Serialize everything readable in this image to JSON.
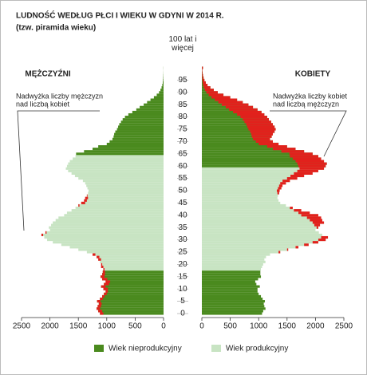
{
  "chart_data": {
    "type": "pyramid",
    "title": "LUDNOŚĆ WEDŁUG PŁCI I WIEKU W GDYNI W 2014 R.",
    "subtitle": "(tzw. piramida wieku)",
    "categories": [
      "0",
      null,
      null,
      null,
      null,
      "5",
      null,
      null,
      null,
      null,
      "10",
      null,
      null,
      null,
      null,
      "15",
      null,
      null,
      null,
      null,
      "20",
      null,
      null,
      null,
      null,
      "25",
      null,
      null,
      null,
      null,
      "30",
      null,
      null,
      null,
      null,
      "35",
      null,
      null,
      null,
      null,
      "40",
      null,
      null,
      null,
      null,
      "45",
      null,
      null,
      null,
      null,
      "50",
      null,
      null,
      null,
      null,
      "55",
      null,
      null,
      null,
      null,
      "60",
      null,
      null,
      null,
      null,
      "65",
      null,
      null,
      null,
      null,
      "70",
      null,
      null,
      null,
      null,
      "75",
      null,
      null,
      null,
      null,
      "80",
      null,
      null,
      null,
      null,
      "85",
      null,
      null,
      null,
      null,
      "90",
      null,
      null,
      null,
      null,
      "95",
      null,
      null,
      null,
      null,
      "100 lat i więcej"
    ],
    "series": [
      {
        "name": "MĘŻCZYŹNI",
        "side": "left",
        "productive_from": 18,
        "productive_to": 64,
        "values": [
          1120,
          1150,
          1180,
          1160,
          1140,
          1170,
          1120,
          1080,
          1050,
          1020,
          1060,
          1100,
          1050,
          1020,
          1080,
          1110,
          1080,
          1070,
          1060,
          1100,
          1100,
          1120,
          1150,
          1180,
          1250,
          1350,
          1500,
          1650,
          1800,
          1950,
          2050,
          2100,
          2150,
          2080,
          2000,
          2020,
          1980,
          1950,
          1900,
          1850,
          1750,
          1700,
          1620,
          1550,
          1500,
          1450,
          1400,
          1380,
          1350,
          1330,
          1320,
          1340,
          1360,
          1380,
          1420,
          1500,
          1560,
          1620,
          1680,
          1720,
          1700,
          1680,
          1650,
          1600,
          1550,
          1540,
          1400,
          1250,
          1150,
          1000,
          950,
          900,
          880,
          870,
          850,
          820,
          800,
          780,
          750,
          720,
          680,
          620,
          550,
          480,
          420,
          350,
          290,
          230,
          170,
          120,
          80,
          55,
          35,
          22,
          14,
          9,
          6,
          4,
          2,
          1,
          2
        ]
      },
      {
        "name": "KOBIETY",
        "side": "right",
        "productive_from": 18,
        "productive_to": 59,
        "values": [
          1060,
          1080,
          1120,
          1100,
          1090,
          1110,
          1070,
          1040,
          1000,
          980,
          980,
          1020,
          960,
          940,
          990,
          1040,
          1030,
          1030,
          1040,
          1060,
          1080,
          1120,
          1100,
          1130,
          1200,
          1380,
          1520,
          1700,
          1880,
          2050,
          2180,
          2220,
          2120,
          2060,
          2000,
          2050,
          2080,
          2150,
          2120,
          2100,
          2050,
          1900,
          1750,
          1600,
          1480,
          1380,
          1350,
          1330,
          1340,
          1360,
          1370,
          1400,
          1420,
          1480,
          1550,
          1680,
          1800,
          1950,
          2050,
          2150,
          2180,
          2200,
          2150,
          2100,
          2050,
          1950,
          1800,
          1650,
          1500,
          1350,
          1250,
          1200,
          1230,
          1250,
          1280,
          1300,
          1280,
          1250,
          1220,
          1180,
          1150,
          1100,
          1050,
          980,
          900,
          820,
          720,
          620,
          500,
          380,
          280,
          210,
          150,
          100,
          70,
          45,
          30,
          20,
          12,
          8,
          20
        ]
      }
    ],
    "legend": [
      {
        "name": "Wiek nieprodukcyjny",
        "color": "#4a8a1e"
      },
      {
        "name": "Wiek produkcyjny",
        "color": "#c8e4c3"
      }
    ],
    "excess_color": "#e1211c",
    "annotations": [
      {
        "side": "left",
        "lines": [
          "Nadwyżka liczby mężczyzn",
          "nad liczbą kobiet"
        ]
      },
      {
        "side": "right",
        "lines": [
          "Nadwyżka liczby kobiet",
          "nad liczbą mężczyzn"
        ]
      }
    ],
    "xlim": [
      0,
      2500
    ],
    "xticks": [
      0,
      500,
      1000,
      1500,
      2000,
      2500
    ]
  }
}
